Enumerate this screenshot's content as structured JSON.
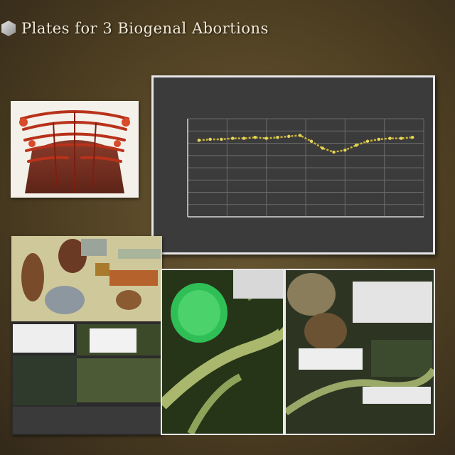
{
  "header": {
    "title": "Plates for 3 Biogenal Abortions",
    "logo_icon": "hex-crystal-icon"
  },
  "chart_data": {
    "type": "line",
    "title": "",
    "subtitle": "",
    "xlabel": "",
    "ylabel": "",
    "grid": true,
    "x": [
      1,
      2,
      3,
      4,
      5,
      6,
      7,
      8,
      9,
      10,
      11,
      12,
      13,
      14,
      15,
      16,
      17,
      18,
      19,
      20
    ],
    "series": [
      {
        "values": [
          0.78,
          0.79,
          0.79,
          0.8,
          0.8,
          0.81,
          0.8,
          0.81,
          0.82,
          0.83,
          0.77,
          0.7,
          0.66,
          0.68,
          0.73,
          0.77,
          0.79,
          0.8,
          0.8,
          0.81
        ]
      }
    ],
    "xlim": [
      0,
      21
    ],
    "ylim": [
      0,
      1
    ],
    "colors": {
      "line": "#c9b63b",
      "grid": "#6a6a6a",
      "axis": "#d8d8d8",
      "background": "#3b3b3b"
    }
  },
  "colors": {
    "background": "#4e3f22",
    "plate_paper": "#f4f1ea",
    "frame": "#e6e6e6"
  }
}
